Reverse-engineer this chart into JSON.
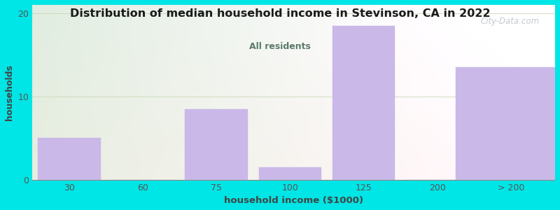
{
  "title": "Distribution of median household income in Stevinson, CA in 2022",
  "subtitle": "All residents",
  "xlabel": "household income ($1000)",
  "ylabel": "households",
  "categories": [
    "30",
    "60",
    "75",
    "100",
    "125",
    "200",
    "> 200"
  ],
  "values": [
    5,
    0,
    8.5,
    1.5,
    18.5,
    0,
    13.5
  ],
  "bar_color": "#c9b8e8",
  "bar_edgecolor": "#c9b8e8",
  "background_outer": "#00e5e5",
  "title_color": "#1a1a1a",
  "subtitle_color": "#5a7a6a",
  "axis_label_color": "#444444",
  "tick_color": "#555555",
  "ylim": [
    0,
    21
  ],
  "yticks": [
    0,
    10,
    20
  ],
  "watermark": "City-Data.com",
  "bar_positions": [
    0,
    1,
    2,
    3,
    4,
    5,
    6
  ],
  "bar_width": 0.85
}
